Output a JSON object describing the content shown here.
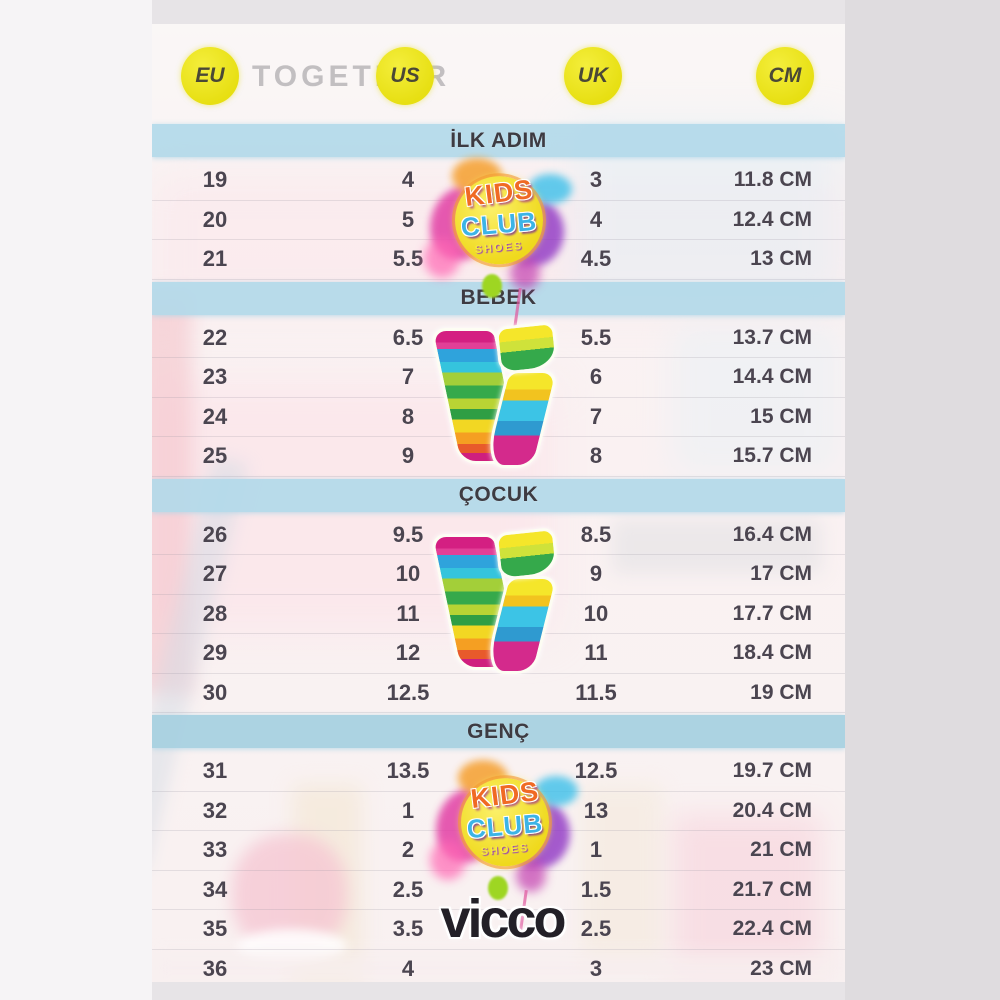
{
  "watermark_text": "TOGETHER",
  "header": {
    "columns": [
      {
        "label": "EU"
      },
      {
        "label": "US"
      },
      {
        "label": "UK"
      },
      {
        "label": "CM"
      }
    ],
    "circle_color": "#e8e014",
    "circle_text_color": "#4a4836"
  },
  "table": {
    "sections": [
      {
        "title": "İLK ADIM",
        "rows": [
          [
            "19",
            "4",
            "3",
            "11.8 CM"
          ],
          [
            "20",
            "5",
            "4",
            "12.4 CM"
          ],
          [
            "21",
            "5.5",
            "4.5",
            "13 CM"
          ]
        ]
      },
      {
        "title": "BEBEK",
        "rows": [
          [
            "22",
            "6.5",
            "5.5",
            "13.7 CM"
          ],
          [
            "23",
            "7",
            "6",
            "14.4 CM"
          ],
          [
            "24",
            "8",
            "7",
            "15 CM"
          ],
          [
            "25",
            "9",
            "8",
            "15.7 CM"
          ]
        ]
      },
      {
        "title": "ÇOCUK",
        "rows": [
          [
            "26",
            "9.5",
            "8.5",
            "16.4 CM"
          ],
          [
            "27",
            "10",
            "9",
            "17 CM"
          ],
          [
            "28",
            "11",
            "10",
            "17.7 CM"
          ],
          [
            "29",
            "12",
            "11",
            "18.4 CM"
          ],
          [
            "30",
            "12.5",
            "11.5",
            "19 CM"
          ]
        ]
      },
      {
        "title": "GENÇ",
        "rows": [
          [
            "31",
            "13.5",
            "12.5",
            "19.7 CM"
          ],
          [
            "32",
            "1",
            "13",
            "20.4 CM"
          ],
          [
            "33",
            "2",
            "1",
            "21 CM"
          ],
          [
            "34",
            "2.5",
            "1.5",
            "21.7 CM"
          ],
          [
            "35",
            "3.5",
            "2.5",
            "22.4 CM"
          ],
          [
            "36",
            "4",
            "3",
            "23 CM"
          ]
        ]
      }
    ]
  },
  "logos": {
    "kids_club": {
      "line1": "KIDS",
      "line2": "CLUB",
      "tagline": "SHOES"
    },
    "vicco_wordmark": "vicco"
  },
  "colors": {
    "band_blue": "#b2d9e9",
    "band_blue_deep": "#a8d1e0",
    "accent_yellow": "#e8e014",
    "row_text": "#4b4550",
    "vicco_black": "#232027"
  }
}
